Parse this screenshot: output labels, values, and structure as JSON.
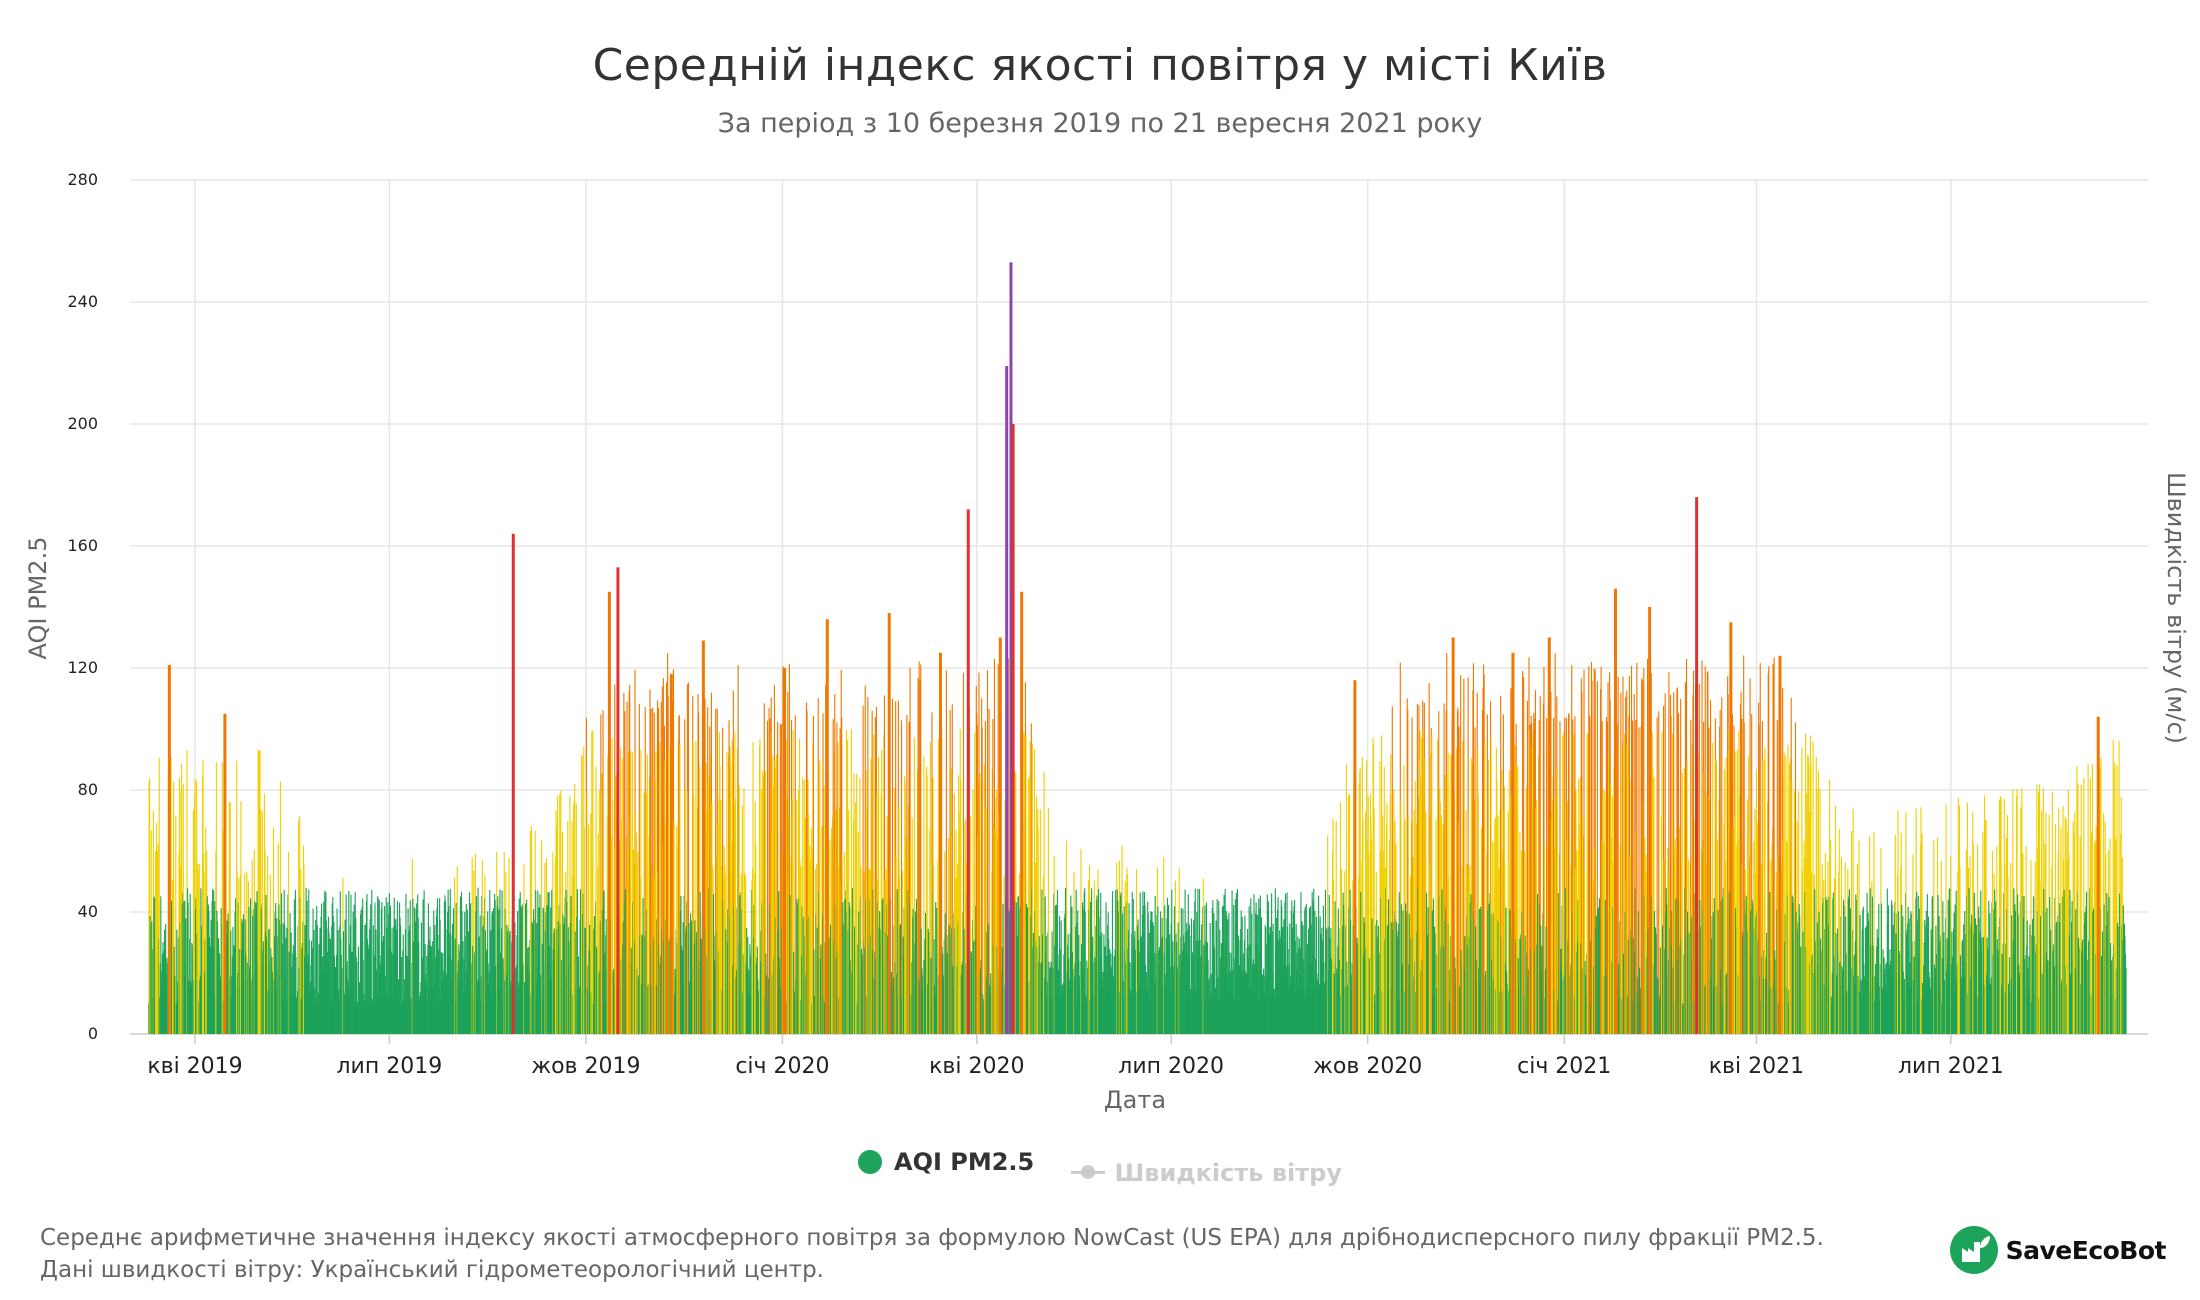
{
  "chart_data": {
    "type": "bar",
    "title": "Середній індекс якості повітря у місті Київ",
    "subtitle": "За період з 10 березня 2019 по 21 вересня 2021 року",
    "xlabel": "Дата",
    "ylabel": "AQI PM2.5",
    "y2label": "Швидкість вітру (м/с)",
    "ylim": [
      0,
      280
    ],
    "yticks": [
      "0",
      "40",
      "80",
      "120",
      "160",
      "200",
      "240",
      "280"
    ],
    "x_range": [
      "2019-03-10",
      "2021-09-21"
    ],
    "xticks": [
      {
        "date": "2019-04-01",
        "label": "кві 2019"
      },
      {
        "date": "2019-07-01",
        "label": "лип 2019"
      },
      {
        "date": "2019-10-01",
        "label": "жов 2019"
      },
      {
        "date": "2020-01-01",
        "label": "січ 2020"
      },
      {
        "date": "2020-04-01",
        "label": "кві 2020"
      },
      {
        "date": "2020-07-01",
        "label": "лип 2020"
      },
      {
        "date": "2020-10-01",
        "label": "жов 2020"
      },
      {
        "date": "2021-01-01",
        "label": "січ 2021"
      },
      {
        "date": "2021-04-01",
        "label": "кві 2021"
      },
      {
        "date": "2021-07-01",
        "label": "лип 2021"
      }
    ],
    "grid": true,
    "legend_position": "bottom-center",
    "series": [
      {
        "name": "AQI PM2.5",
        "color": "#1ea35a",
        "visible": true
      },
      {
        "name": "Швидкість вітру",
        "color": "#cccccc",
        "visible": false
      }
    ],
    "aqi_colors": {
      "good": "#1ea35a",
      "moderate": "#f0d000",
      "unhealthy_sensitive": "#f07800",
      "unhealthy": "#e03030",
      "very_unhealthy": "#8e44ad"
    },
    "peaks": [
      {
        "date": "2019-03-14",
        "value": 60
      },
      {
        "date": "2019-03-20",
        "value": 121
      },
      {
        "date": "2019-04-15",
        "value": 105
      },
      {
        "date": "2019-05-01",
        "value": 93
      },
      {
        "date": "2019-08-28",
        "value": 164
      },
      {
        "date": "2019-10-12",
        "value": 145
      },
      {
        "date": "2019-10-16",
        "value": 153
      },
      {
        "date": "2019-11-10",
        "value": 118
      },
      {
        "date": "2019-11-25",
        "value": 129
      },
      {
        "date": "2020-01-02",
        "value": 120
      },
      {
        "date": "2020-01-22",
        "value": 136
      },
      {
        "date": "2020-02-20",
        "value": 138
      },
      {
        "date": "2020-03-15",
        "value": 125
      },
      {
        "date": "2020-03-28",
        "value": 172
      },
      {
        "date": "2020-04-12",
        "value": 130
      },
      {
        "date": "2020-04-15",
        "value": 219
      },
      {
        "date": "2020-04-17",
        "value": 253
      },
      {
        "date": "2020-04-18",
        "value": 200
      },
      {
        "date": "2020-04-22",
        "value": 145
      },
      {
        "date": "2020-09-25",
        "value": 116
      },
      {
        "date": "2020-11-10",
        "value": 130
      },
      {
        "date": "2020-12-08",
        "value": 125
      },
      {
        "date": "2020-12-25",
        "value": 130
      },
      {
        "date": "2021-01-25",
        "value": 146
      },
      {
        "date": "2021-02-10",
        "value": 140
      },
      {
        "date": "2021-03-04",
        "value": 176
      },
      {
        "date": "2021-03-20",
        "value": 135
      },
      {
        "date": "2021-04-12",
        "value": 124
      },
      {
        "date": "2021-09-08",
        "value": 104
      }
    ],
    "seed": 7
  },
  "legend": {
    "aqi": "AQI PM2.5",
    "wind": "Швидкість вітру"
  },
  "footer": {
    "line1": "Середнє арифметичне значення індексу якості атмосферного повітря за формулою NowCast (US EPA) для дрібнодисперсного пилу фракції PM2.5.",
    "line2": "Дані швидкості вітру: Український гідрометеорологічний центр."
  },
  "logo": {
    "text": "SaveEcoBot"
  }
}
